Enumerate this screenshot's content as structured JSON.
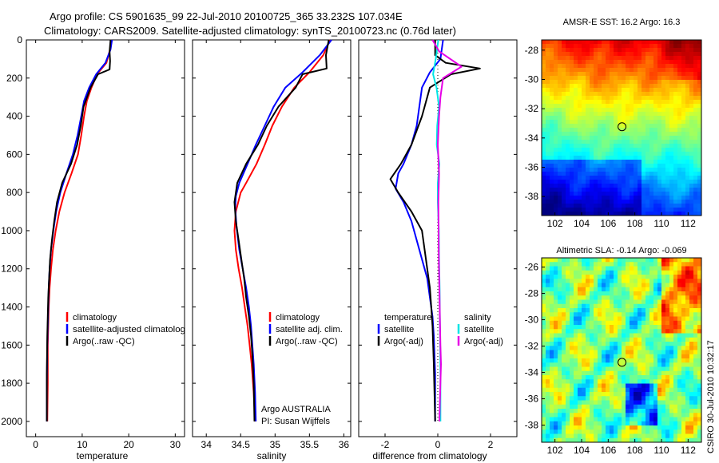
{
  "colors": {
    "climatology": "#ff0000",
    "satellite": "#0000ff",
    "argo": "#000000",
    "satellite_salinity": "#00e5e5",
    "argo_salinity": "#e600e6"
  },
  "title": {
    "line1": "Argo profile: CS 5901635_99 22-Jul-2010 20100725_365 33.232S 107.034E",
    "line2": "Climatology: CARS2009. Satellite-adjusted climatology: synTS_20100723.nc (0.76d later)"
  },
  "footer_credit": "CSIRO 30-Jul-2010 10:32:17",
  "chart_data": [
    {
      "id": "temperature",
      "type": "line",
      "xlabel": "temperature",
      "ylabel": "",
      "xlim": [
        -2,
        32
      ],
      "ylim": [
        2080,
        0
      ],
      "xticks": [
        0,
        10,
        20,
        30
      ],
      "yticks": [
        0,
        200,
        400,
        600,
        800,
        1000,
        1200,
        1400,
        1600,
        1800,
        2000
      ],
      "legend": [
        "climatology",
        "satellite-adjusted climatolog",
        "Argo(..raw -QC)"
      ],
      "series": [
        {
          "name": "climatology",
          "color": "#ff0000",
          "x": [
            16.2,
            16.0,
            15.2,
            13.2,
            12.0,
            11.0,
            10.4,
            9.8,
            9.1,
            7.7,
            6.2,
            5.1,
            4.3,
            3.7,
            3.3,
            3.0,
            2.8,
            2.7,
            2.6,
            2.6,
            2.5
          ],
          "y": [
            0,
            50,
            120,
            180,
            250,
            320,
            400,
            500,
            600,
            700,
            800,
            900,
            1000,
            1100,
            1200,
            1300,
            1400,
            1500,
            1600,
            1800,
            2000
          ]
        },
        {
          "name": "satellite-adjusted climatology",
          "color": "#0000ff",
          "x": [
            16.4,
            16.1,
            15.0,
            13.0,
            11.5,
            10.4,
            9.8,
            9.0,
            8.0,
            6.6,
            5.3,
            4.4,
            3.8,
            3.3,
            3.0,
            2.8,
            2.7,
            2.6,
            2.5,
            2.4,
            2.4
          ],
          "y": [
            0,
            50,
            120,
            180,
            250,
            320,
            400,
            500,
            600,
            700,
            800,
            900,
            1000,
            1100,
            1200,
            1300,
            1400,
            1500,
            1600,
            1800,
            2000
          ]
        },
        {
          "name": "Argo(..raw -QC)",
          "color": "#000000",
          "x": [
            16.1,
            15.9,
            16.0,
            15.9,
            13.4,
            11.8,
            10.3,
            9.7,
            8.9,
            7.6,
            5.7,
            4.6,
            4.0,
            3.5,
            3.1,
            2.9,
            2.7,
            2.6,
            2.5,
            2.4,
            2.4
          ],
          "y": [
            0,
            60,
            110,
            155,
            180,
            250,
            350,
            450,
            550,
            650,
            750,
            850,
            950,
            1050,
            1150,
            1250,
            1350,
            1450,
            1550,
            1750,
            2000
          ]
        }
      ]
    },
    {
      "id": "salinity",
      "type": "line",
      "xlabel": "salinity",
      "ylabel": "",
      "xlim": [
        33.8,
        36.1
      ],
      "ylim": [
        2080,
        0
      ],
      "xticks": [
        34,
        34.5,
        35,
        35.5,
        36
      ],
      "xtick_labels": [
        "34",
        "34.5",
        "35",
        "35.5",
        "36"
      ],
      "legend": [
        "climatology",
        "satellite adj. clim.",
        "Argo(..raw -QC)"
      ],
      "annotation": [
        "Argo AUSTRALIA",
        "PI: Susan Wijffels"
      ],
      "series": [
        {
          "name": "climatology",
          "color": "#ff0000",
          "x": [
            35.8,
            35.7,
            35.5,
            35.28,
            35.1,
            34.96,
            34.85,
            34.73,
            34.58,
            34.5,
            34.43,
            34.41,
            34.43,
            34.47,
            34.52,
            34.56,
            34.6,
            34.63,
            34.66,
            34.69,
            34.71
          ],
          "y": [
            0,
            80,
            170,
            250,
            350,
            450,
            550,
            650,
            750,
            800,
            900,
            1000,
            1100,
            1200,
            1300,
            1400,
            1500,
            1600,
            1700,
            1850,
            2000
          ]
        },
        {
          "name": "satellite adj. clim.",
          "color": "#0000ff",
          "x": [
            35.82,
            35.65,
            35.4,
            35.15,
            34.98,
            34.85,
            34.72,
            34.6,
            34.48,
            34.43,
            34.42,
            34.44,
            34.48,
            34.53,
            34.58,
            34.62,
            34.65,
            34.67,
            34.69,
            34.71,
            34.72
          ],
          "y": [
            0,
            80,
            170,
            250,
            350,
            450,
            550,
            650,
            750,
            820,
            880,
            980,
            1100,
            1200,
            1300,
            1400,
            1500,
            1600,
            1700,
            1850,
            2000
          ]
        },
        {
          "name": "Argo(..raw -QC)",
          "color": "#000000",
          "x": [
            35.78,
            35.74,
            35.75,
            35.4,
            35.3,
            35.05,
            34.88,
            34.75,
            34.58,
            34.45,
            34.41,
            34.43,
            34.47,
            34.51,
            34.55,
            34.58,
            34.62,
            34.65,
            34.67,
            34.69,
            34.7
          ],
          "y": [
            0,
            80,
            150,
            180,
            250,
            350,
            450,
            550,
            650,
            750,
            850,
            950,
            1050,
            1150,
            1250,
            1350,
            1450,
            1550,
            1650,
            1800,
            2000
          ]
        }
      ]
    },
    {
      "id": "difference",
      "type": "line",
      "xlabel": "difference from climatology",
      "ylabel": "",
      "xlim": [
        -3,
        3
      ],
      "ylim": [
        2080,
        0
      ],
      "xticks": [
        -2,
        0,
        2
      ],
      "legend_temperature": {
        "heading": "temperature",
        "items": [
          "satellite",
          "Argo(-adj)"
        ]
      },
      "legend_salinity": {
        "heading": "salinity",
        "items": [
          "satellite",
          "Argo(-adj)"
        ]
      },
      "series": [
        {
          "name": "temperature satellite",
          "color": "#0000ff",
          "x": [
            0.2,
            0.1,
            -0.3,
            -0.6,
            -0.7,
            -0.8,
            -1.0,
            -1.3,
            -1.5,
            -1.6,
            -1.3,
            -1.0,
            -0.8,
            -0.6,
            -0.4,
            -0.3,
            -0.2,
            -0.15,
            -0.1,
            -0.1
          ],
          "y": [
            0,
            100,
            170,
            250,
            350,
            450,
            550,
            650,
            700,
            780,
            850,
            950,
            1050,
            1150,
            1250,
            1350,
            1450,
            1550,
            1750,
            2000
          ]
        },
        {
          "name": "temperature Argo(-adj)",
          "color": "#000000",
          "x": [
            -0.1,
            -0.1,
            0.3,
            1.6,
            0.5,
            -0.3,
            -0.6,
            -1.0,
            -1.4,
            -1.8,
            -1.5,
            -1.0,
            -0.6,
            -0.5,
            -0.4,
            -0.3,
            -0.25,
            -0.2,
            -0.15,
            -0.1
          ],
          "y": [
            0,
            80,
            120,
            150,
            180,
            250,
            400,
            550,
            650,
            730,
            800,
            900,
            1000,
            1100,
            1200,
            1300,
            1400,
            1500,
            1700,
            2000
          ]
        },
        {
          "name": "salinity satellite",
          "color": "#00e5e5",
          "x": [
            0.02,
            -0.08,
            -0.18,
            -0.05,
            0.05,
            -0.02,
            -0.04,
            0.06,
            0.0,
            0.0,
            0.04,
            0.05,
            0.07,
            0.08,
            0.09,
            0.1,
            0.1,
            0.1
          ],
          "y": [
            0,
            100,
            180,
            250,
            350,
            450,
            550,
            650,
            750,
            850,
            1000,
            1150,
            1300,
            1450,
            1600,
            1750,
            1900,
            2000
          ]
        },
        {
          "name": "salinity Argo(-adj)",
          "color": "#e600e6",
          "x": [
            -0.2,
            0.05,
            0.9,
            0.2,
            0.1,
            0.05,
            0.0,
            0.05,
            0.02,
            0.03,
            0.04,
            0.06,
            0.08,
            0.1,
            0.12,
            0.1,
            0.08,
            0.06
          ],
          "y": [
            0,
            60,
            140,
            200,
            300,
            400,
            550,
            700,
            850,
            1000,
            1150,
            1300,
            1450,
            1600,
            1700,
            1800,
            1900,
            2000
          ]
        }
      ]
    },
    {
      "id": "sst_map",
      "type": "heatmap",
      "title": "AMSR-E SST: 16.2  Argo: 16.3",
      "xlim": [
        101,
        113
      ],
      "ylim": [
        -39.3,
        -27.3
      ],
      "xticks": [
        102,
        104,
        106,
        108,
        110,
        112
      ],
      "yticks": [
        -38,
        -36,
        -34,
        -32,
        -30,
        -28
      ],
      "profile_marker": {
        "lon": 107.034,
        "lat": -33.232
      }
    },
    {
      "id": "sla_map",
      "type": "heatmap",
      "title": "Altimetric SLA: -0.14  Argo: -0.069",
      "xlim": [
        101,
        113
      ],
      "ylim": [
        -39.3,
        -25.3
      ],
      "xticks": [
        102,
        104,
        106,
        108,
        110,
        112
      ],
      "yticks": [
        -38,
        -36,
        -34,
        -32,
        -30,
        -28,
        -26
      ],
      "profile_marker": {
        "lon": 107.034,
        "lat": -33.232
      }
    }
  ]
}
